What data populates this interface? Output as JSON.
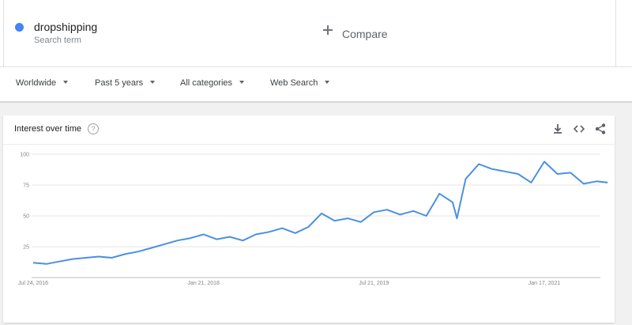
{
  "search_term": {
    "label": "dropshipping",
    "sublabel": "Search term",
    "color": "#4285f4"
  },
  "compare": {
    "label": "Compare"
  },
  "filters": {
    "region": "Worldwide",
    "time_range": "Past 5 years",
    "category": "All categories",
    "search_type": "Web Search"
  },
  "card": {
    "title": "Interest over time",
    "icons": [
      "download-icon",
      "embed-icon",
      "share-icon"
    ]
  },
  "chart_data": {
    "type": "line",
    "title": "Interest over time",
    "x_tick_labels": [
      "Jul 24, 2016",
      "Jan 21, 2018",
      "Jul 21, 2019",
      "Jan 17, 2021"
    ],
    "y_tick_labels": [
      "100",
      "75",
      "50",
      "25"
    ],
    "ylim": [
      0,
      100
    ],
    "grid": true,
    "legend": "none",
    "series": [
      {
        "color": "#4a90e2",
        "x": [
          "2016-07-24",
          "2016-09-04",
          "2016-10-16",
          "2016-11-27",
          "2017-01-08",
          "2017-02-19",
          "2017-04-02",
          "2017-05-14",
          "2017-06-25",
          "2017-08-06",
          "2017-09-17",
          "2017-10-29",
          "2017-12-10",
          "2018-01-21",
          "2018-03-04",
          "2018-04-15",
          "2018-05-27",
          "2018-07-08",
          "2018-08-19",
          "2018-09-30",
          "2018-11-11",
          "2018-12-23",
          "2019-02-03",
          "2019-03-17",
          "2019-04-28",
          "2019-06-09",
          "2019-07-21",
          "2019-09-01",
          "2019-10-13",
          "2019-11-24",
          "2020-01-05",
          "2020-02-16",
          "2020-03-29",
          "2020-04-12",
          "2020-05-10",
          "2020-06-21",
          "2020-08-02",
          "2020-09-13",
          "2020-10-25",
          "2020-12-06",
          "2021-01-17",
          "2021-02-28",
          "2021-04-11",
          "2021-05-23",
          "2021-07-04",
          "2021-08-08"
        ],
        "values": [
          12,
          11,
          13,
          15,
          16,
          17,
          16,
          19,
          21,
          24,
          27,
          30,
          32,
          35,
          31,
          33,
          30,
          35,
          37,
          40,
          36,
          41,
          52,
          46,
          48,
          45,
          53,
          55,
          51,
          54,
          50,
          68,
          61,
          48,
          80,
          92,
          88,
          86,
          84,
          77,
          94,
          84,
          85,
          76,
          78,
          77
        ]
      }
    ]
  }
}
